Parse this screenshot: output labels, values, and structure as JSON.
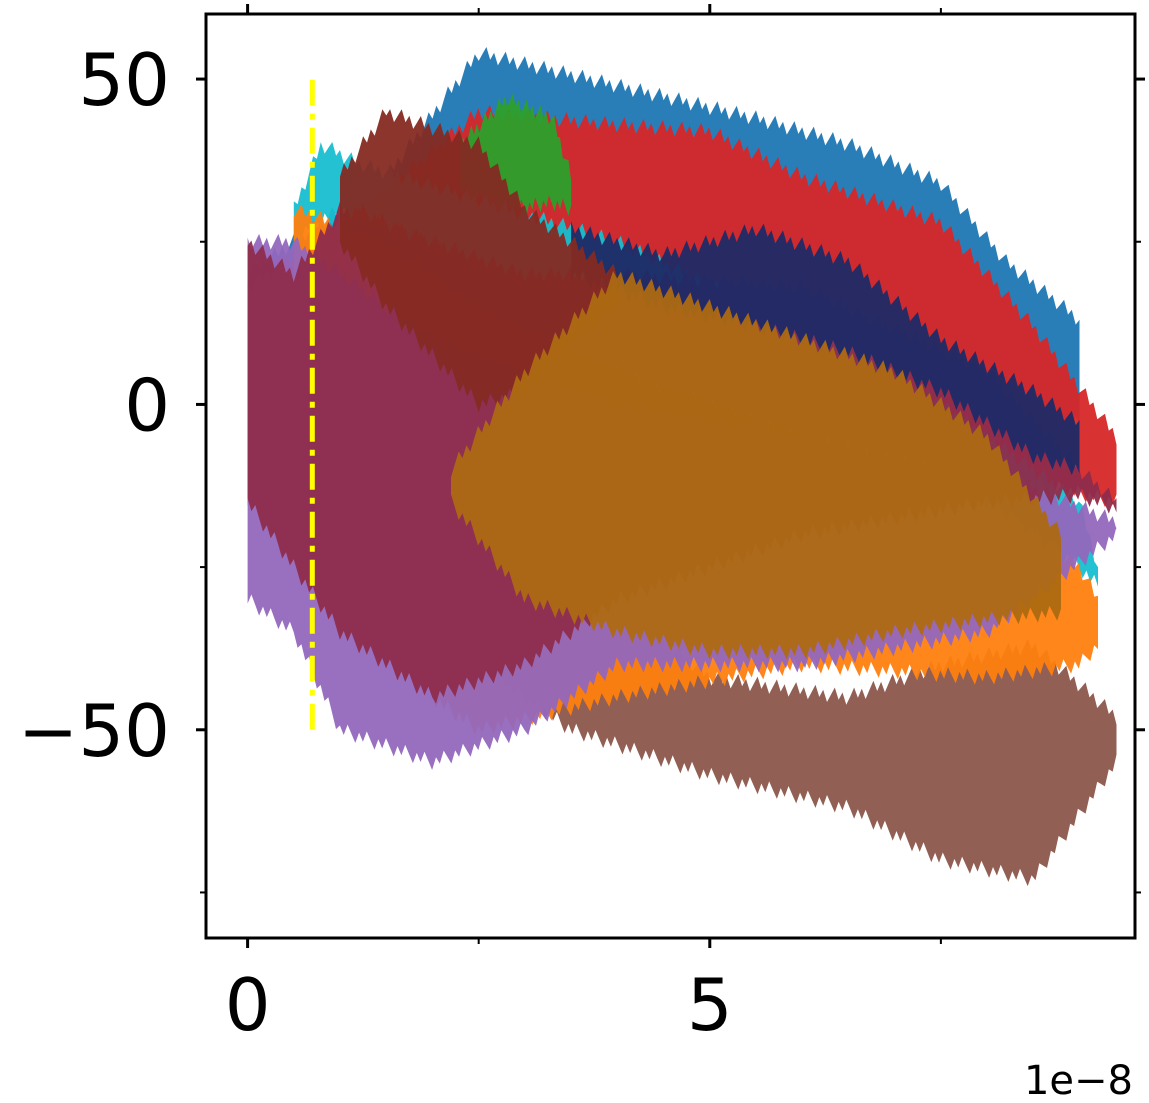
{
  "chart_data": {
    "type": "area",
    "title": "",
    "xlabel": "",
    "ylabel": "",
    "x_offset_label": "1e−8",
    "xlim": [
      -0.45,
      9.6
    ],
    "ylim": [
      -82,
      60
    ],
    "x_ticks": [
      {
        "value": 0,
        "label": "0"
      },
      {
        "value": 5,
        "label": "5"
      }
    ],
    "x_minor_ticks": [
      2.5,
      7.5
    ],
    "y_ticks": [
      {
        "value": 50,
        "label": "50"
      },
      {
        "value": 0,
        "label": "0"
      },
      {
        "value": -50,
        "label": "−50"
      }
    ],
    "y_minor_ticks": [
      25,
      -25,
      -75
    ],
    "vline": {
      "x": 0.7,
      "y_range": [
        -50,
        50
      ],
      "color": "#ffff00",
      "style": "dashdot"
    },
    "series": [
      {
        "color": "#1f77b4",
        "x": [
          0.0,
          1.5,
          2.5,
          4.0,
          5.5,
          6.5,
          7.5,
          8.2,
          9.0
        ],
        "upper": [
          20,
          35,
          54,
          49,
          44,
          40,
          34,
          22,
          13
        ],
        "lower": [
          -10,
          10,
          15,
          20,
          15,
          10,
          5,
          -3,
          -3
        ]
      },
      {
        "color": "#d62728",
        "x": [
          0.0,
          1.5,
          2.5,
          4.0,
          5.0,
          6.0,
          7.5,
          8.5,
          9.4
        ],
        "upper": [
          18,
          33,
          45,
          43,
          42,
          35,
          28,
          12,
          -5
        ],
        "lower": [
          -15,
          -10,
          0,
          5,
          0,
          -5,
          -10,
          -12,
          -15
        ]
      },
      {
        "color": "#2ca02c",
        "x": [
          2.3,
          2.8,
          3.3,
          3.5
        ],
        "upper": [
          40,
          47,
          44,
          35
        ],
        "lower": [
          33,
          30,
          31,
          30
        ]
      },
      {
        "color": "#17becf",
        "x": [
          0.5,
          0.8,
          1.2,
          4.0,
          7.0,
          9.0,
          9.2
        ],
        "upper": [
          30,
          40,
          37,
          25,
          5,
          -15,
          -25
        ],
        "lower": [
          25,
          28,
          30,
          10,
          -5,
          -25,
          -28
        ]
      },
      {
        "color": "#8c564b",
        "x": [
          1.3,
          2.5,
          3.5,
          5.0,
          6.5,
          7.5,
          8.5,
          9.4
        ],
        "upper": [
          -20,
          -18,
          -25,
          -42,
          -45,
          -40,
          -37,
          -48
        ],
        "lower": [
          -30,
          -40,
          -50,
          -57,
          -62,
          -70,
          -73,
          -55
        ]
      },
      {
        "color": "#ff7f0e",
        "x": [
          0.5,
          1.5,
          2.5,
          4.0,
          6.0,
          8.0,
          9.0,
          9.2
        ],
        "upper": [
          30,
          25,
          15,
          5,
          -5,
          -15,
          -25,
          -30
        ],
        "lower": [
          -10,
          -40,
          -50,
          -45,
          -40,
          -42,
          -40,
          -37
        ]
      },
      {
        "color": "#9467bd",
        "x": [
          0.0,
          0.5,
          1.0,
          2.0,
          3.0,
          4.0,
          6.0,
          8.0,
          9.4
        ],
        "upper": [
          25,
          25,
          20,
          10,
          5,
          0,
          -5,
          -10,
          -18
        ],
        "lower": [
          -30,
          -35,
          -50,
          -55,
          -50,
          -40,
          -40,
          -35,
          -20
        ]
      },
      {
        "color": "#8e2c4c",
        "x": [
          0.0,
          0.5,
          1.0,
          2.0,
          3.0,
          4.0,
          6.0,
          8.0,
          9.0,
          9.4
        ],
        "upper": [
          25,
          20,
          30,
          25,
          20,
          20,
          18,
          5,
          -10,
          -15
        ],
        "lower": [
          -15,
          -25,
          -35,
          -45,
          -40,
          -30,
          -20,
          -15,
          -14,
          -16
        ]
      },
      {
        "color": "#1f2a66",
        "x": [
          3.5,
          4.5,
          5.5,
          6.5,
          7.5,
          8.5,
          9.0
        ],
        "upper": [
          27,
          23,
          27,
          22,
          10,
          2,
          -3
        ],
        "lower": [
          20,
          15,
          12,
          8,
          2,
          -8,
          -10
        ]
      },
      {
        "color": "#852a22",
        "x": [
          1.0,
          1.5,
          2.5,
          3.0,
          3.5,
          4.0
        ],
        "upper": [
          35,
          45,
          40,
          30,
          25,
          20
        ],
        "lower": [
          25,
          15,
          0,
          2,
          10,
          15
        ]
      },
      {
        "color": "#ad6a12",
        "x": [
          2.2,
          3.0,
          4.0,
          5.0,
          6.0,
          7.0,
          8.0,
          8.8
        ],
        "upper": [
          -10,
          5,
          20,
          15,
          10,
          5,
          -5,
          -20
        ],
        "lower": [
          -15,
          -30,
          -35,
          -38,
          -38,
          -35,
          -33,
          -32
        ]
      }
    ]
  }
}
